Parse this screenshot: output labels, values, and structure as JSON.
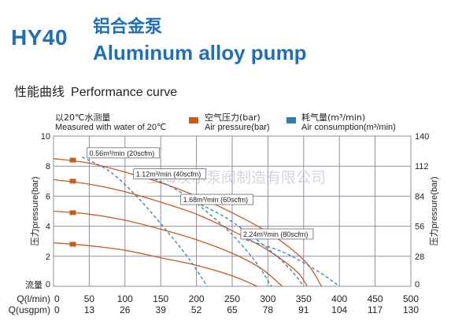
{
  "header": {
    "model": "HY40",
    "title_cn": "铝合金泵",
    "title_en": "Aluminum alloy pump"
  },
  "subtitle": {
    "cn": "性能曲线",
    "en": "Performance curve"
  },
  "notes": {
    "water_cn": "以20℃水测量",
    "water_en": "Measured with water of 20℃",
    "air_pressure_cn": "空气压力(bar)",
    "air_pressure_en": "Air pressure(bar)",
    "air_consumption_cn": "耗气量(m³/min)",
    "air_consumption_en": "Air consumption(m³/min)"
  },
  "watermark": "上海汉尔泵阀制造有限公司",
  "colors": {
    "brand": "#1f6fb8",
    "pressure": "#cc5a1e",
    "consumption": "#2f7fb6",
    "grid": "#8e8ea6"
  },
  "chart_data": {
    "type": "line",
    "xlim": [
      0,
      500
    ],
    "ylim": [
      0,
      10
    ],
    "y2lim": [
      0,
      140
    ],
    "x_ticks": [
      0,
      50,
      100,
      150,
      200,
      250,
      300,
      350,
      400,
      450,
      500
    ],
    "x_tick_labels": [
      "0",
      "50",
      "100",
      "150",
      "200",
      "250",
      "300",
      "350",
      "400",
      "450",
      "500"
    ],
    "x2_tick_labels": [
      "0",
      "13",
      "26",
      "39",
      "52",
      "65",
      "78",
      "91",
      "104",
      "117",
      "130"
    ],
    "y_ticks": [
      0,
      2,
      4,
      6,
      8,
      10
    ],
    "y_tick_labels": [
      "0",
      "2",
      "4",
      "6",
      "8",
      "10"
    ],
    "y2_tick_labels": [
      "0",
      "28",
      "56",
      "84",
      "112",
      "140"
    ],
    "xlabel": "Q(l/min)",
    "xlabel2": "Q(usgpm)",
    "ylabel": "压力pressure(bar)",
    "y2label": "压力pressure(bar)",
    "corner_label": "流量",
    "grid": true,
    "series": [
      {
        "kind": "pressure",
        "marker_y": 8.4,
        "points": [
          [
            0,
            8.5
          ],
          [
            50,
            8.2
          ],
          [
            100,
            7.6
          ],
          [
            150,
            6.9
          ],
          [
            200,
            6.0
          ],
          [
            250,
            4.9
          ],
          [
            300,
            3.6
          ],
          [
            340,
            2.2
          ],
          [
            360,
            1.2
          ],
          [
            375,
            0
          ]
        ]
      },
      {
        "kind": "pressure",
        "marker_y": 7.0,
        "points": [
          [
            0,
            7.1
          ],
          [
            50,
            6.8
          ],
          [
            100,
            6.3
          ],
          [
            150,
            5.6
          ],
          [
            200,
            4.8
          ],
          [
            250,
            3.7
          ],
          [
            300,
            2.4
          ],
          [
            340,
            1.0
          ],
          [
            355,
            0
          ]
        ]
      },
      {
        "kind": "pressure",
        "marker_y": 4.9,
        "points": [
          [
            0,
            5.0
          ],
          [
            50,
            4.8
          ],
          [
            100,
            4.4
          ],
          [
            150,
            3.8
          ],
          [
            200,
            3.1
          ],
          [
            250,
            2.2
          ],
          [
            290,
            1.2
          ],
          [
            320,
            0
          ]
        ]
      },
      {
        "kind": "pressure",
        "marker_y": 2.8,
        "points": [
          [
            0,
            2.9
          ],
          [
            50,
            2.7
          ],
          [
            100,
            2.4
          ],
          [
            150,
            1.9
          ],
          [
            200,
            1.4
          ],
          [
            250,
            0.7
          ],
          [
            285,
            0
          ]
        ]
      },
      {
        "kind": "consumption",
        "points": [
          [
            40,
            8.6
          ],
          [
            80,
            7.6
          ],
          [
            120,
            5.8
          ],
          [
            160,
            3.6
          ],
          [
            190,
            1.8
          ],
          [
            215,
            0
          ]
        ]
      },
      {
        "kind": "consumption",
        "points": [
          [
            120,
            7.6
          ],
          [
            180,
            6.2
          ],
          [
            240,
            3.9
          ],
          [
            280,
            1.8
          ],
          [
            305,
            0
          ]
        ]
      },
      {
        "kind": "consumption",
        "points": [
          [
            185,
            5.9
          ],
          [
            240,
            4.6
          ],
          [
            295,
            2.7
          ],
          [
            330,
            1.2
          ],
          [
            350,
            0
          ]
        ]
      },
      {
        "kind": "consumption",
        "points": [
          [
            262,
            3.2
          ],
          [
            320,
            2.3
          ],
          [
            370,
            1.0
          ],
          [
            400,
            0
          ]
        ]
      }
    ],
    "annotations": [
      {
        "text": "0.56m³/min (20scfm)",
        "x": 47,
        "y": 8.7
      },
      {
        "text": "1.12m³/min (40scfm)",
        "x": 112,
        "y": 7.3
      },
      {
        "text": "1.68m³/min (60scfm)",
        "x": 178,
        "y": 5.6
      },
      {
        "text": "2.24m³/min (80scfm)",
        "x": 262,
        "y": 3.3
      }
    ]
  }
}
